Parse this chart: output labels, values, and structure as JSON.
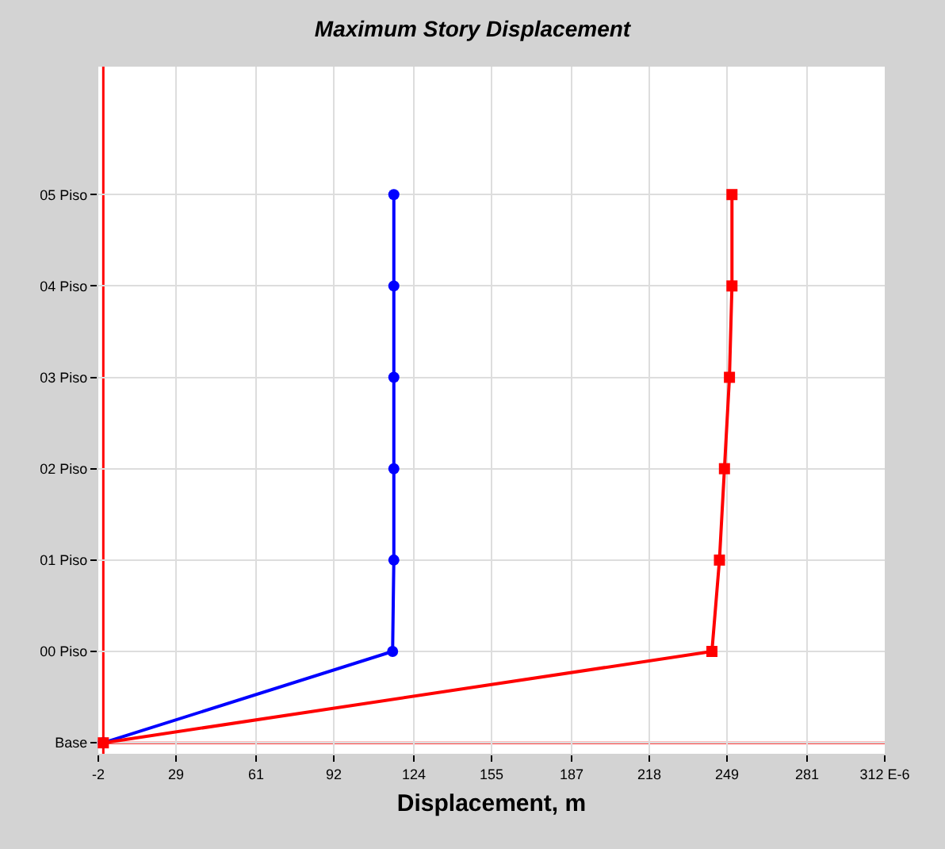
{
  "chart_data": {
    "type": "line",
    "orientation": "horizontal",
    "title": "Maximum Story Displacement",
    "xlabel": "Displacement, m",
    "xlim": [
      -2,
      312
    ],
    "xticks": [
      -2,
      29,
      61,
      92,
      124,
      155,
      187,
      218,
      249,
      281,
      {
        "value": 312,
        "label": "312 E-6"
      }
    ],
    "categories": [
      "05 Piso",
      "04 Piso",
      "03 Piso",
      "02 Piso",
      "01 Piso",
      "00 Piso",
      "Base"
    ],
    "grid": true,
    "series": [
      {
        "color": "#0000ff",
        "marker": "circle",
        "values": [
          116,
          116,
          116,
          116,
          116,
          115.5,
          0
        ]
      },
      {
        "color": "#ff0000",
        "marker": "square",
        "values": [
          251,
          251,
          250,
          248,
          246,
          243,
          0
        ]
      }
    ],
    "ref_lines": [
      {
        "axis": "x",
        "value": 0,
        "color": "#ff0000"
      },
      {
        "axis": "y",
        "value": "Base",
        "color": "#ff0000"
      }
    ]
  }
}
